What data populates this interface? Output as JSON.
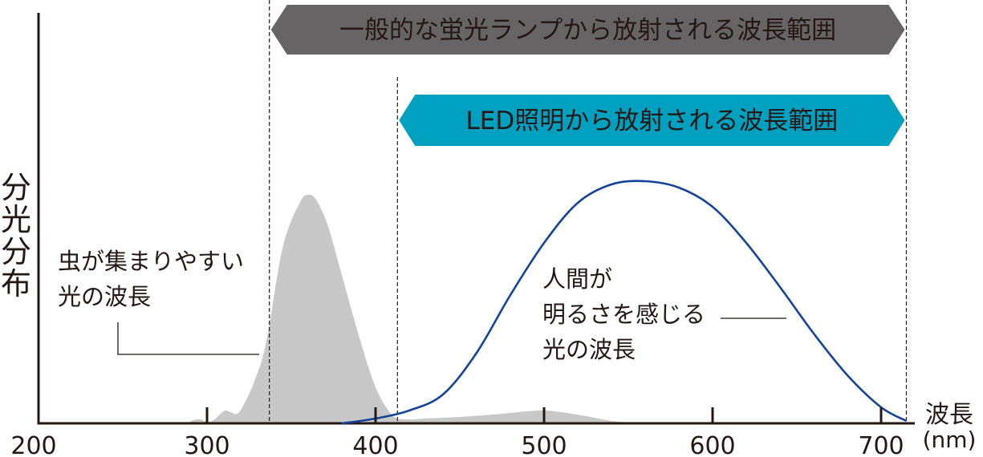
{
  "chart_data": {
    "type": "area",
    "ylabel": "分光分布",
    "xlabel_line1": "波長",
    "xlabel_line2": "(nm)",
    "xlim": [
      200,
      720
    ],
    "x_ticks": [
      {
        "value": 200,
        "label": "200"
      },
      {
        "value": 300,
        "label": "300"
      },
      {
        "value": 400,
        "label": "400"
      },
      {
        "value": 500,
        "label": "500"
      },
      {
        "value": 600,
        "label": "600"
      },
      {
        "value": 700,
        "label": "700"
      }
    ],
    "ranges": [
      {
        "label": "一般的な蛍光ランプから放射される波長範囲",
        "from": 337,
        "to": 715,
        "color": "#666464"
      },
      {
        "label": "LED照明から放射される波長範囲",
        "from": 413,
        "to": 715,
        "color": "#00a0c0"
      }
    ],
    "series": [
      {
        "key": "insect",
        "color": "#c8c8c8",
        "x": [
          288,
          292,
          296,
          300,
          304,
          308,
          311,
          314,
          318,
          322,
          328,
          335,
          345,
          355,
          360,
          365,
          372,
          380,
          390,
          400,
          410,
          418,
          430,
          450,
          470,
          490,
          500,
          510,
          525,
          540,
          555
        ],
        "y": [
          0,
          4,
          5,
          2,
          4,
          12,
          16,
          14,
          12,
          24,
          52,
          100,
          220,
          275,
          285,
          278,
          245,
          185,
          110,
          45,
          10,
          5,
          6,
          8,
          11,
          15,
          16,
          14,
          9,
          3,
          0
        ]
      },
      {
        "key": "human",
        "color": "#14449a",
        "x": [
          380,
          400,
          420,
          440,
          460,
          480,
          500,
          520,
          540,
          560,
          580,
          600,
          620,
          640,
          660,
          680,
          700,
          715
        ],
        "y": [
          0,
          6,
          16,
          36,
          88,
          160,
          225,
          275,
          298,
          302,
          294,
          270,
          225,
          170,
          112,
          60,
          20,
          3
        ]
      }
    ],
    "annotations": {
      "insect": {
        "lines": [
          "虫が集まりやすい",
          "光の波長"
        ]
      },
      "human": {
        "lines": [
          "人間が",
          "明るさを感じる",
          "光の波長"
        ]
      }
    }
  }
}
